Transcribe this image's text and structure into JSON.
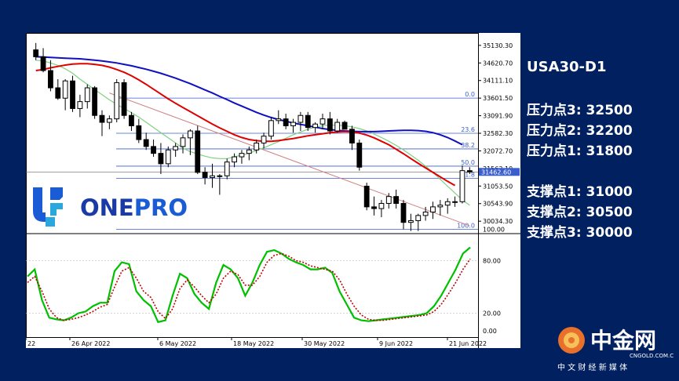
{
  "chart_data": {
    "type": "candlestick",
    "symbol": "USA30-D1",
    "price_axis": {
      "ticks": [
        "35130.30",
        "34620.70",
        "34111.10",
        "33601.50",
        "33091.90",
        "32582.30",
        "32072.70",
        "31563.10",
        "31053.50",
        "30543.90",
        "30034.30"
      ],
      "range": [
        29720,
        35400
      ]
    },
    "current_price": "31462.60",
    "fib_levels": [
      {
        "label": "0.0",
        "price": 33601.5
      },
      {
        "label": "23.6",
        "price": 32582.3
      },
      {
        "label": "38.2",
        "price": 32130
      },
      {
        "label": "50.0",
        "price": 31630
      },
      {
        "label": "61.8",
        "price": 31280
      },
      {
        "label": "100.0",
        "price": 29800
      }
    ],
    "x_labels": [
      "22",
      "26 Apr 2022",
      "6 May 2022",
      "18 May 2022",
      "30 May 2022",
      "9 Jun 2022",
      "21 Jun 2022"
    ],
    "candles": [
      {
        "o": 35000,
        "h": 35200,
        "l": 34700,
        "c": 34800
      },
      {
        "o": 34800,
        "h": 35050,
        "l": 34350,
        "c": 34400
      },
      {
        "o": 34400,
        "h": 34700,
        "l": 33800,
        "c": 33900
      },
      {
        "o": 33900,
        "h": 34150,
        "l": 33550,
        "c": 33600
      },
      {
        "o": 33600,
        "h": 34150,
        "l": 33250,
        "c": 34100
      },
      {
        "o": 34100,
        "h": 34250,
        "l": 33200,
        "c": 33300
      },
      {
        "o": 33300,
        "h": 33700,
        "l": 33050,
        "c": 33500
      },
      {
        "o": 33500,
        "h": 34000,
        "l": 33300,
        "c": 33900
      },
      {
        "o": 33900,
        "h": 33950,
        "l": 33000,
        "c": 33100
      },
      {
        "o": 33100,
        "h": 33250,
        "l": 32500,
        "c": 32900
      },
      {
        "o": 32900,
        "h": 33100,
        "l": 32700,
        "c": 33000
      },
      {
        "o": 33000,
        "h": 34150,
        "l": 32900,
        "c": 34050
      },
      {
        "o": 34050,
        "h": 34150,
        "l": 33000,
        "c": 33100
      },
      {
        "o": 33100,
        "h": 33200,
        "l": 32650,
        "c": 32800
      },
      {
        "o": 32800,
        "h": 33000,
        "l": 32300,
        "c": 32400
      },
      {
        "o": 32400,
        "h": 32600,
        "l": 32100,
        "c": 32200
      },
      {
        "o": 32200,
        "h": 32400,
        "l": 31900,
        "c": 32000
      },
      {
        "o": 32000,
        "h": 32300,
        "l": 31400,
        "c": 31700
      },
      {
        "o": 31700,
        "h": 32200,
        "l": 31600,
        "c": 32100
      },
      {
        "o": 32100,
        "h": 32300,
        "l": 31900,
        "c": 32200
      },
      {
        "o": 32200,
        "h": 32550,
        "l": 32000,
        "c": 32450
      },
      {
        "o": 32450,
        "h": 32700,
        "l": 31950,
        "c": 32650
      },
      {
        "o": 32650,
        "h": 32800,
        "l": 31400,
        "c": 31450
      },
      {
        "o": 31450,
        "h": 31600,
        "l": 31100,
        "c": 31300
      },
      {
        "o": 31300,
        "h": 31700,
        "l": 31000,
        "c": 31350
      },
      {
        "o": 31350,
        "h": 31400,
        "l": 30800,
        "c": 31350
      },
      {
        "o": 31350,
        "h": 31850,
        "l": 31250,
        "c": 31750
      },
      {
        "o": 31750,
        "h": 32000,
        "l": 31600,
        "c": 31900
      },
      {
        "o": 31900,
        "h": 32100,
        "l": 31700,
        "c": 32000
      },
      {
        "o": 32000,
        "h": 32200,
        "l": 31800,
        "c": 32100
      },
      {
        "o": 32100,
        "h": 32400,
        "l": 32000,
        "c": 32300
      },
      {
        "o": 32300,
        "h": 32600,
        "l": 32150,
        "c": 32500
      },
      {
        "o": 32500,
        "h": 33050,
        "l": 32400,
        "c": 32950
      },
      {
        "o": 32950,
        "h": 33250,
        "l": 32850,
        "c": 33000
      },
      {
        "o": 33000,
        "h": 33150,
        "l": 32700,
        "c": 32800
      },
      {
        "o": 32800,
        "h": 33000,
        "l": 32600,
        "c": 32900
      },
      {
        "o": 32900,
        "h": 33200,
        "l": 32650,
        "c": 33100
      },
      {
        "o": 33100,
        "h": 33200,
        "l": 32650,
        "c": 32750
      },
      {
        "o": 32750,
        "h": 32900,
        "l": 32600,
        "c": 32850
      },
      {
        "o": 32850,
        "h": 33150,
        "l": 32700,
        "c": 33000
      },
      {
        "o": 33000,
        "h": 33200,
        "l": 32550,
        "c": 32650
      },
      {
        "o": 32650,
        "h": 33000,
        "l": 32600,
        "c": 32900
      },
      {
        "o": 32900,
        "h": 32950,
        "l": 32700,
        "c": 32700
      },
      {
        "o": 32700,
        "h": 32800,
        "l": 32100,
        "c": 32300
      },
      {
        "o": 32300,
        "h": 32400,
        "l": 31500,
        "c": 31600
      },
      {
        "o": 31050,
        "h": 31150,
        "l": 30350,
        "c": 30450
      },
      {
        "o": 30450,
        "h": 30750,
        "l": 30200,
        "c": 30400
      },
      {
        "o": 30400,
        "h": 30650,
        "l": 30150,
        "c": 30550
      },
      {
        "o": 30550,
        "h": 30850,
        "l": 30400,
        "c": 30750
      },
      {
        "o": 30750,
        "h": 30950,
        "l": 30400,
        "c": 30550
      },
      {
        "o": 30550,
        "h": 30650,
        "l": 29800,
        "c": 30000
      },
      {
        "o": 30000,
        "h": 30250,
        "l": 29750,
        "c": 30050
      },
      {
        "o": 30050,
        "h": 30250,
        "l": 29750,
        "c": 30200
      },
      {
        "o": 30200,
        "h": 30450,
        "l": 30050,
        "c": 30300
      },
      {
        "o": 30300,
        "h": 30600,
        "l": 30100,
        "c": 30450
      },
      {
        "o": 30450,
        "h": 30650,
        "l": 30200,
        "c": 30500
      },
      {
        "o": 30500,
        "h": 30700,
        "l": 30250,
        "c": 30600
      },
      {
        "o": 30600,
        "h": 30750,
        "l": 30450,
        "c": 30600
      },
      {
        "o": 30600,
        "h": 31650,
        "l": 30550,
        "c": 31500
      },
      {
        "o": 31500,
        "h": 31600,
        "l": 31400,
        "c": 31460
      }
    ],
    "ma_red": [
      34400,
      34430,
      34480,
      34520,
      34560,
      34590,
      34600,
      34600,
      34580,
      34550,
      34500,
      34430,
      34350,
      34250,
      34130,
      34000,
      33860,
      33720,
      33580,
      33450,
      33330,
      33210,
      33090,
      32970,
      32850,
      32740,
      32640,
      32540,
      32460,
      32400,
      32370,
      32350,
      32350,
      32370,
      32400,
      32430,
      32470,
      32510,
      32540,
      32570,
      32600,
      32620,
      32630,
      32620,
      32590,
      32530,
      32450,
      32350,
      32250,
      32120,
      31990,
      31850,
      31710,
      31580,
      31450,
      31320,
      31190,
      31070
    ],
    "ma_blue": [
      34800,
      34790,
      34780,
      34770,
      34760,
      34750,
      34740,
      34720,
      34700,
      34680,
      34650,
      34620,
      34580,
      34540,
      34490,
      34440,
      34380,
      34320,
      34250,
      34180,
      34100,
      34020,
      33930,
      33840,
      33750,
      33650,
      33560,
      33460,
      33370,
      33280,
      33190,
      33110,
      33040,
      32980,
      32930,
      32880,
      32840,
      32800,
      32760,
      32720,
      32690,
      32670,
      32650,
      32640,
      32630,
      32630,
      32630,
      32640,
      32650,
      32660,
      32670,
      32670,
      32660,
      32640,
      32600,
      32540,
      32460,
      32360,
      32250
    ],
    "ma_green": [
      34700,
      34680,
      34620,
      34550,
      34450,
      34320,
      34150,
      34000,
      33850,
      33700,
      33550,
      33420,
      33300,
      33180,
      33050,
      32900,
      32750,
      32600,
      32450,
      32300,
      32150,
      32050,
      31980,
      31920,
      31870,
      31850,
      31850,
      31900,
      31950,
      32000,
      32080,
      32160,
      32250,
      32340,
      32440,
      32540,
      32620,
      32700,
      32760,
      32800,
      32820,
      32820,
      32800,
      32770,
      32720,
      32650,
      32560,
      32460,
      32350,
      32230,
      32100,
      31950,
      31800,
      31630,
      31450,
      31250,
      31050,
      30850,
      30650,
      30500
    ],
    "trendline": {
      "from": [
        10,
        33750
      ],
      "to": [
        59,
        29900
      ]
    },
    "stochastic": {
      "ticks": [
        "80.00",
        "20.00",
        "0.00"
      ],
      "main": [
        62,
        70,
        35,
        15,
        13,
        12,
        15,
        20,
        22,
        28,
        32,
        32,
        68,
        78,
        76,
        45,
        35,
        28,
        10,
        12,
        40,
        65,
        60,
        42,
        32,
        25,
        55,
        75,
        70,
        60,
        40,
        55,
        75,
        90,
        92,
        88,
        82,
        78,
        75,
        70,
        70,
        72,
        66,
        45,
        30,
        15,
        12,
        11,
        12,
        13,
        14,
        15,
        16,
        17,
        18,
        20,
        28,
        40,
        55,
        70,
        88,
        95
      ],
      "signal": [
        55,
        62,
        45,
        25,
        15,
        12,
        13,
        15,
        18,
        22,
        27,
        30,
        50,
        68,
        72,
        60,
        45,
        38,
        22,
        14,
        25,
        48,
        58,
        50,
        40,
        32,
        42,
        60,
        68,
        64,
        52,
        52,
        62,
        78,
        86,
        88,
        85,
        80,
        78,
        74,
        72,
        70,
        68,
        58,
        42,
        28,
        18,
        13,
        12,
        12,
        13,
        14,
        15,
        16,
        17,
        18,
        22,
        30,
        42,
        55,
        70,
        82
      ]
    }
  },
  "panel": {
    "symbol": "USA30-D1",
    "resistance": [
      "压力点3: 32500",
      "压力点2: 32200",
      "压力点1: 31800"
    ],
    "support": [
      "支撑点1: 31000",
      "支撑点2: 30500",
      "支撑点3: 30000"
    ]
  },
  "logo": {
    "text_one": "ONE",
    "text_pro": "PRO"
  },
  "brand": {
    "name": "中金网",
    "url": "CNGOLD.COM.CN",
    "tagline": "中 文 财 经 新 媒 体"
  },
  "colors": {
    "background": "#002060",
    "ma_red": "#e00000",
    "ma_blue": "#1010c0",
    "ma_green": "#80d080",
    "stoch_main": "#00c000",
    "stoch_signal": "#c00000",
    "fib": "#3a5fcd",
    "logo_blue": "#1a5bd6"
  }
}
